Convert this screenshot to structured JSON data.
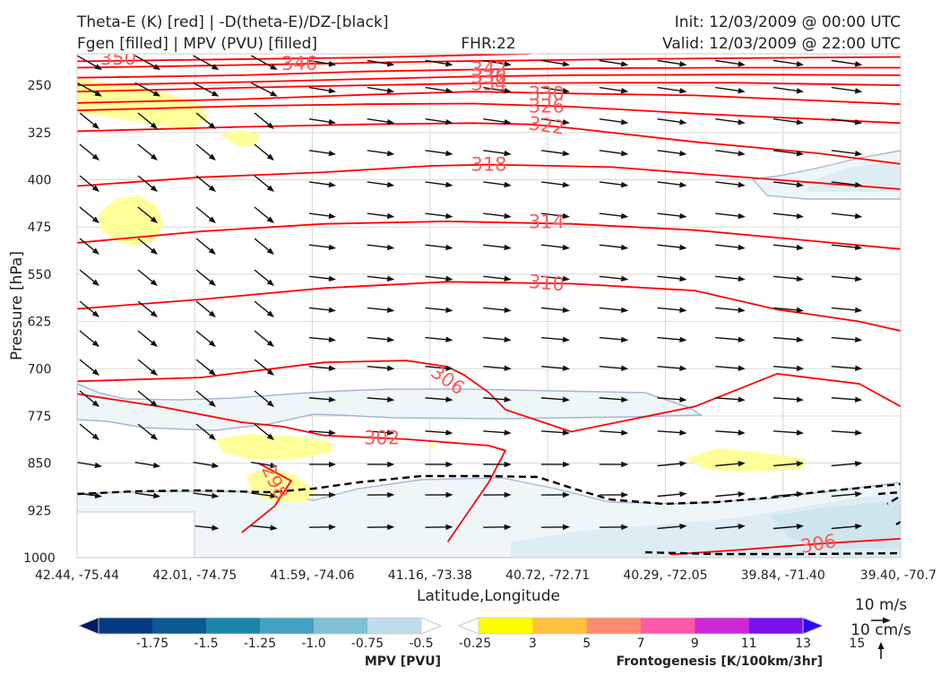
{
  "header": {
    "title_line1": "Theta-E (K) [red] | -D(theta-E)/DZ-[black]",
    "title_line2": "Fgen [filled] | MPV (PVU) [filled]",
    "fhr": "FHR:22",
    "init": "Init: 12/03/2009 @ 00:00 UTC",
    "valid": "Valid: 12/03/2009 @ 22:00 UTC"
  },
  "chart_data": {
    "type": "cross-section",
    "xlabel": "Latitude,Longitude",
    "ylabel": "Pressure [hPa]",
    "x_ticks": [
      "42.44, -75.44",
      "42.01, -74.75",
      "41.59, -74.06",
      "41.16, -73.38",
      "40.72, -72.71",
      "40.29, -72.05",
      "39.84, -71.40",
      "39.40, -70.7"
    ],
    "y_ticks": [
      250,
      325,
      400,
      475,
      550,
      625,
      700,
      775,
      850,
      925,
      1000
    ],
    "ylim": [
      1000,
      200
    ],
    "y_axis_inverted": true,
    "grid": true,
    "colors": {
      "theta_e": "#ff0000",
      "theta_e_label": "#ff5a5a",
      "dtheta_dz": "#000000",
      "mpv_fill": "#eef6f8",
      "mpv_outline": "#a9b7d3",
      "fgen_fill": "#ffff99"
    },
    "theta_e_contours": [
      {
        "label": "350",
        "value": 350,
        "pts": [
          [
            0,
            212
          ],
          [
            0.35,
            206
          ],
          [
            0.55,
            200
          ]
        ]
      },
      {
        "label": "346",
        "value": 346,
        "pts": [
          [
            0,
            222
          ],
          [
            0.15,
            219
          ],
          [
            0.28,
            216
          ],
          [
            0.45,
            212
          ],
          [
            0.7,
            208
          ],
          [
            1,
            205
          ]
        ]
      },
      {
        "label": "342",
        "value": 342,
        "pts": [
          [
            0,
            238
          ],
          [
            0.2,
            234
          ],
          [
            0.35,
            228
          ],
          [
            0.48,
            225
          ],
          [
            0.6,
            223
          ],
          [
            0.8,
            222
          ],
          [
            1,
            222
          ]
        ]
      },
      {
        "label": "338",
        "value": 338,
        "pts": [
          [
            0,
            250
          ],
          [
            0.2,
            245
          ],
          [
            0.35,
            240
          ],
          [
            0.48,
            236
          ],
          [
            0.6,
            234
          ],
          [
            0.8,
            233
          ],
          [
            1,
            234
          ]
        ]
      },
      {
        "label": "334",
        "value": 334,
        "pts": [
          [
            0,
            260
          ],
          [
            0.2,
            254
          ],
          [
            0.35,
            250
          ],
          [
            0.48,
            247
          ],
          [
            0.65,
            246
          ],
          [
            0.8,
            246
          ],
          [
            1,
            250
          ]
        ]
      },
      {
        "label": "330",
        "value": 330,
        "pts": [
          [
            0,
            278
          ],
          [
            0.2,
            272
          ],
          [
            0.35,
            265
          ],
          [
            0.48,
            260
          ],
          [
            0.6,
            263
          ],
          [
            0.75,
            266
          ],
          [
            1,
            280
          ]
        ]
      },
      {
        "label": "326",
        "value": 326,
        "pts": [
          [
            0,
            290
          ],
          [
            0.2,
            283
          ],
          [
            0.35,
            280
          ],
          [
            0.48,
            279
          ],
          [
            0.6,
            284
          ],
          [
            0.75,
            295
          ],
          [
            1,
            310
          ]
        ]
      },
      {
        "label": "322",
        "value": 322,
        "pts": [
          [
            0,
            323
          ],
          [
            0.2,
            316
          ],
          [
            0.35,
            312
          ],
          [
            0.48,
            310
          ],
          [
            0.55,
            312
          ],
          [
            0.6,
            318
          ],
          [
            0.75,
            340
          ],
          [
            0.9,
            358
          ],
          [
            1,
            375
          ]
        ]
      },
      {
        "label": "318",
        "value": 318,
        "pts": [
          [
            0,
            410
          ],
          [
            0.15,
            396
          ],
          [
            0.3,
            388
          ],
          [
            0.43,
            378
          ],
          [
            0.5,
            376
          ],
          [
            0.58,
            378
          ],
          [
            0.65,
            380
          ],
          [
            0.75,
            390
          ],
          [
            0.85,
            400
          ],
          [
            1,
            415
          ]
        ]
      },
      {
        "label": "314",
        "value": 314,
        "pts": [
          [
            0,
            500
          ],
          [
            0.15,
            482
          ],
          [
            0.3,
            470
          ],
          [
            0.45,
            466
          ],
          [
            0.6,
            470
          ],
          [
            0.75,
            480
          ],
          [
            0.85,
            492
          ],
          [
            1,
            510
          ]
        ]
      },
      {
        "label": "310",
        "value": 310,
        "pts": [
          [
            0,
            605
          ],
          [
            0.15,
            590
          ],
          [
            0.3,
            572
          ],
          [
            0.45,
            562
          ],
          [
            0.6,
            565
          ],
          [
            0.75,
            576
          ],
          [
            0.85,
            606
          ],
          [
            0.95,
            625
          ],
          [
            1,
            640
          ]
        ]
      },
      {
        "label": "306",
        "value": 306,
        "pts": [
          [
            0,
            720
          ],
          [
            0.15,
            714
          ],
          [
            0.3,
            690
          ],
          [
            0.4,
            687
          ],
          [
            0.45,
            697
          ],
          [
            0.47,
            710
          ],
          [
            0.5,
            738
          ],
          [
            0.52,
            765
          ],
          [
            0.6,
            800
          ],
          [
            0.75,
            760
          ],
          [
            0.85,
            708
          ],
          [
            0.95,
            724
          ],
          [
            1,
            760
          ]
        ]
      },
      {
        "label": "302",
        "value": 302,
        "pts": [
          [
            0,
            740
          ],
          [
            0.1,
            760
          ],
          [
            0.2,
            785
          ],
          [
            0.25,
            792
          ],
          [
            0.3,
            806
          ],
          [
            0.4,
            812
          ],
          [
            0.5,
            822
          ],
          [
            0.52,
            830
          ],
          [
            0.5,
            880
          ],
          [
            0.45,
            975
          ]
        ]
      },
      {
        "label": "298",
        "value": 298,
        "pts": [
          [
            0.22,
            850
          ],
          [
            0.26,
            878
          ],
          [
            0.24,
            918
          ],
          [
            0.2,
            960
          ]
        ]
      },
      {
        "label": "306",
        "value": 306,
        "pts": [
          [
            0.72,
            995
          ],
          [
            0.8,
            988
          ],
          [
            0.9,
            978
          ],
          [
            1,
            970
          ]
        ]
      }
    ],
    "mpv_colorbar": {
      "label": "MPV [PVU]",
      "ticks": [
        "-1.75",
        "-1.5",
        "-1.25",
        "-1.0",
        "-0.75",
        "-0.5",
        "-0.25"
      ],
      "colors": [
        "#041a60",
        "#063a80",
        "#0a5a94",
        "#1886aa",
        "#43a2c2",
        "#80c0d6",
        "#bfdde8",
        "#ffffff"
      ]
    },
    "fgen_colorbar": {
      "label": "Frontogenesis [K/100km/3hr]",
      "ticks": [
        "3",
        "5",
        "7",
        "9",
        "11",
        "13",
        "15"
      ],
      "colors": [
        "#ffffff",
        "#ffff00",
        "#ffc040",
        "#ff8c6e",
        "#ff5aa8",
        "#ce28d6",
        "#7a10ec",
        "#2a0cf6"
      ]
    },
    "wind_reference": {
      "horizontal": "10 m/s",
      "vertical": "10 cm/s"
    }
  }
}
